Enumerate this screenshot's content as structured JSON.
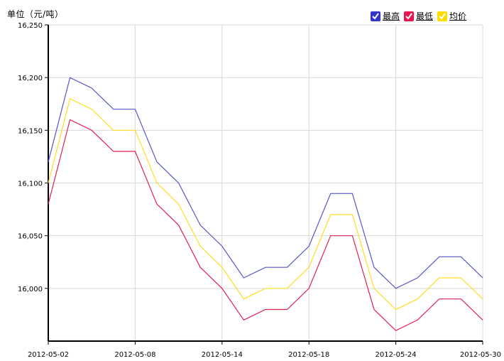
{
  "unit_label": "单位（元/吨）",
  "legend": [
    {
      "label": "最高",
      "color": "#3333cc",
      "checked": true
    },
    {
      "label": "最低",
      "color": "#e8174f",
      "checked": true
    },
    {
      "label": "均价",
      "color": "#ffdd00",
      "checked": true
    }
  ],
  "chart_data": {
    "type": "line",
    "title": "",
    "xlabel": "",
    "ylabel": "单位（元/吨）",
    "ylim": [
      15950,
      16250
    ],
    "y_ticks": [
      16000,
      16050,
      16100,
      16150,
      16200,
      16250
    ],
    "y_tick_labels": [
      "16,000",
      "16,050",
      "16,100",
      "16,150",
      "16,200",
      "16,250"
    ],
    "x_tick_labels": [
      "2012-05-02",
      "2012-05-08",
      "2012-05-14",
      "2012-05-18",
      "2012-05-24",
      "2012-05-30"
    ],
    "x_tick_index": [
      0,
      4,
      8,
      12,
      16,
      20
    ],
    "x": [
      "2012-05-02",
      "2012-05-03",
      "2012-05-04",
      "2012-05-07",
      "2012-05-08",
      "2012-05-09",
      "2012-05-10",
      "2012-05-11",
      "2012-05-14",
      "2012-05-15",
      "2012-05-16",
      "2012-05-17",
      "2012-05-18",
      "2012-05-21",
      "2012-05-22",
      "2012-05-23",
      "2012-05-24",
      "2012-05-25",
      "2012-05-28",
      "2012-05-29",
      "2012-05-30"
    ],
    "grid": true,
    "series": [
      {
        "name": "最高",
        "color": "#5555cc",
        "values": [
          16120,
          16200,
          16190,
          16170,
          16170,
          16120,
          16100,
          16060,
          16040,
          16010,
          16020,
          16020,
          16040,
          16090,
          16090,
          16020,
          16000,
          16010,
          16030,
          16030,
          16010
        ]
      },
      {
        "name": "最低",
        "color": "#dd2255",
        "values": [
          16080,
          16160,
          16150,
          16130,
          16130,
          16080,
          16060,
          16020,
          16000,
          15970,
          15980,
          15980,
          16000,
          16050,
          16050,
          15980,
          15960,
          15970,
          15990,
          15990,
          15970
        ]
      },
      {
        "name": "均价",
        "color": "#ffdd22",
        "values": [
          16100,
          16180,
          16170,
          16150,
          16150,
          16100,
          16080,
          16040,
          16020,
          15990,
          16000,
          16000,
          16020,
          16070,
          16070,
          16000,
          15980,
          15990,
          16010,
          16010,
          15990
        ]
      }
    ]
  }
}
